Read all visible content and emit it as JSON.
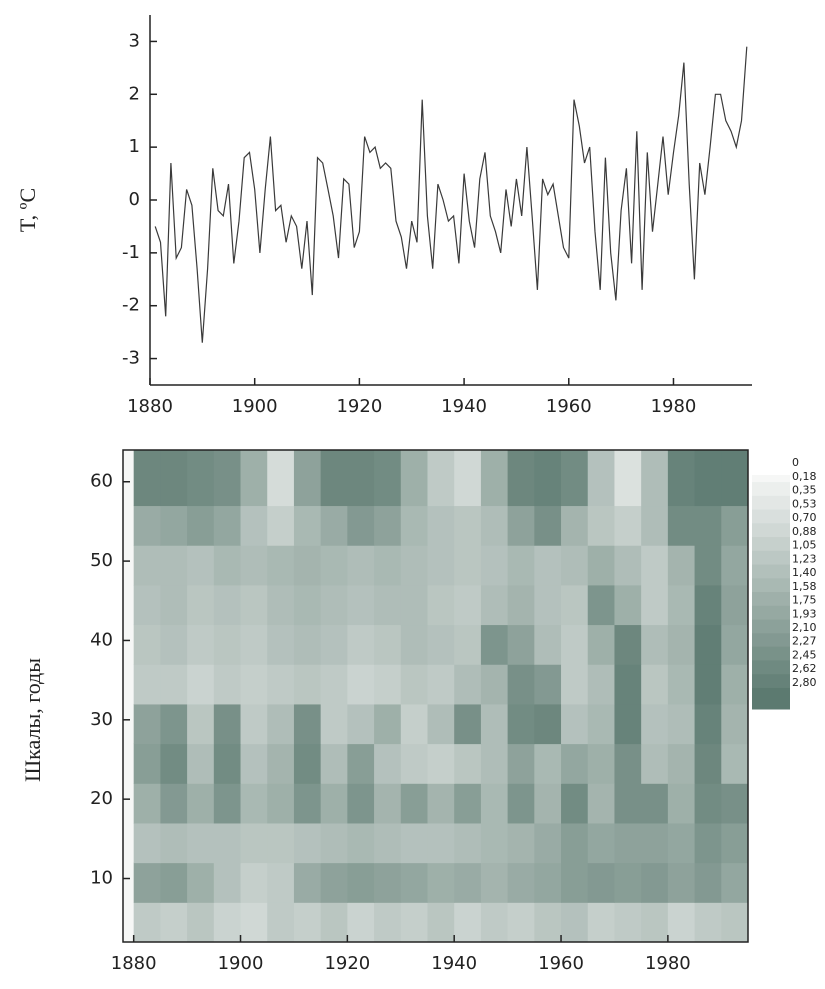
{
  "chart_data": [
    {
      "type": "line",
      "ylabel": "T, ºC",
      "color": "#3a3a3a",
      "x": [
        1881,
        1882,
        1883,
        1884,
        1885,
        1886,
        1887,
        1888,
        1889,
        1890,
        1891,
        1892,
        1893,
        1894,
        1895,
        1896,
        1897,
        1898,
        1899,
        1900,
        1901,
        1902,
        1903,
        1904,
        1905,
        1906,
        1907,
        1908,
        1909,
        1910,
        1911,
        1912,
        1913,
        1914,
        1915,
        1916,
        1917,
        1918,
        1919,
        1920,
        1921,
        1922,
        1923,
        1924,
        1925,
        1926,
        1927,
        1928,
        1929,
        1930,
        1931,
        1932,
        1933,
        1934,
        1935,
        1936,
        1937,
        1938,
        1939,
        1940,
        1941,
        1942,
        1943,
        1944,
        1945,
        1946,
        1947,
        1948,
        1949,
        1950,
        1951,
        1952,
        1953,
        1954,
        1955,
        1956,
        1957,
        1958,
        1959,
        1960,
        1961,
        1962,
        1963,
        1964,
        1965,
        1966,
        1967,
        1968,
        1969,
        1970,
        1971,
        1972,
        1973,
        1974,
        1975,
        1976,
        1977,
        1978,
        1979,
        1980,
        1981,
        1982,
        1983,
        1984,
        1985,
        1986,
        1987,
        1988,
        1989,
        1990,
        1991,
        1992,
        1993,
        1994
      ],
      "values": [
        -0.5,
        -0.8,
        -2.2,
        0.7,
        -1.1,
        -0.9,
        0.2,
        -0.1,
        -1.3,
        -2.7,
        -1.3,
        0.6,
        -0.2,
        -0.3,
        0.3,
        -1.2,
        -0.4,
        0.8,
        0.9,
        0.2,
        -1.0,
        0.2,
        1.2,
        -0.2,
        -0.1,
        -0.8,
        -0.3,
        -0.5,
        -1.3,
        -0.4,
        -1.8,
        0.8,
        0.7,
        0.2,
        -0.3,
        -1.1,
        0.4,
        0.3,
        -0.9,
        -0.6,
        1.2,
        0.9,
        1.0,
        0.6,
        0.7,
        0.6,
        -0.4,
        -0.7,
        -1.3,
        -0.4,
        -0.8,
        1.9,
        -0.3,
        -1.3,
        0.3,
        0.0,
        -0.4,
        -0.3,
        -1.2,
        0.5,
        -0.4,
        -0.9,
        0.4,
        0.9,
        -0.3,
        -0.6,
        -1.0,
        0.2,
        -0.5,
        0.4,
        -0.3,
        1.0,
        -0.3,
        -1.7,
        0.4,
        0.1,
        0.3,
        -0.3,
        -0.9,
        -1.1,
        1.9,
        1.4,
        0.7,
        1.0,
        -0.6,
        -1.7,
        0.8,
        -1.0,
        -1.9,
        -0.2,
        0.6,
        -1.2,
        1.3,
        -1.7,
        0.9,
        -0.6,
        0.3,
        1.2,
        0.1,
        0.9,
        1.6,
        2.6,
        0.3,
        -1.5,
        0.7,
        0.1,
        1.0,
        2.0,
        2.0,
        1.5,
        1.3,
        1.0,
        1.5,
        2.9
      ],
      "xlim": [
        1880,
        1995
      ],
      "ylim": [
        -3.5,
        3.5
      ],
      "xticks": [
        1880,
        1900,
        1920,
        1940,
        1960,
        1980
      ],
      "yticks": [
        -3,
        -2,
        -1,
        0,
        1,
        2,
        3
      ]
    },
    {
      "type": "heatmap",
      "ylabel": "Шкалы, годы",
      "x_bins": [
        1880,
        1885,
        1890,
        1895,
        1900,
        1905,
        1910,
        1915,
        1920,
        1925,
        1930,
        1935,
        1940,
        1945,
        1950,
        1955,
        1960,
        1965,
        1970,
        1975,
        1980,
        1985,
        1990,
        1995
      ],
      "y_bins": [
        2,
        7,
        12,
        17,
        22,
        27,
        32,
        37,
        42,
        47,
        52,
        57,
        64
      ],
      "z": [
        [
          1.0,
          0.9,
          1.1,
          0.8,
          0.7,
          1.0,
          0.9,
          1.1,
          0.8,
          1.0,
          0.9,
          1.1,
          0.8,
          1.0,
          0.9,
          1.1,
          1.2,
          0.9,
          1.0,
          1.1,
          0.8,
          1.0,
          1.1
        ],
        [
          1.9,
          2.0,
          1.6,
          1.2,
          0.9,
          1.0,
          1.7,
          1.9,
          2.0,
          1.9,
          1.8,
          1.6,
          1.7,
          1.5,
          1.7,
          1.8,
          2.0,
          2.1,
          2.0,
          2.1,
          1.9,
          2.1,
          1.8
        ],
        [
          1.2,
          1.3,
          1.2,
          1.2,
          1.1,
          1.1,
          1.2,
          1.3,
          1.4,
          1.3,
          1.2,
          1.2,
          1.3,
          1.4,
          1.5,
          1.7,
          2.0,
          1.8,
          1.9,
          1.9,
          1.8,
          2.2,
          2.0
        ],
        [
          1.6,
          2.1,
          1.6,
          2.2,
          1.4,
          1.6,
          2.2,
          1.6,
          2.2,
          1.5,
          2.0,
          1.5,
          2.0,
          1.4,
          2.2,
          1.5,
          2.4,
          1.5,
          2.3,
          2.3,
          1.6,
          2.4,
          2.3
        ],
        [
          2.0,
          2.4,
          1.3,
          2.4,
          1.2,
          1.5,
          2.4,
          1.3,
          2.0,
          1.2,
          1.0,
          0.9,
          1.1,
          1.3,
          1.9,
          1.4,
          1.8,
          1.6,
          2.3,
          1.3,
          1.5,
          2.5,
          1.4
        ],
        [
          1.9,
          2.2,
          1.1,
          2.3,
          1.0,
          1.3,
          2.3,
          1.0,
          1.2,
          1.6,
          0.9,
          1.3,
          2.3,
          1.3,
          2.4,
          2.5,
          1.2,
          1.4,
          2.6,
          1.2,
          1.3,
          2.6,
          1.5
        ],
        [
          1.0,
          1.0,
          0.8,
          1.0,
          0.9,
          1.0,
          1.1,
          1.0,
          0.8,
          0.9,
          1.1,
          1.0,
          1.3,
          1.5,
          2.3,
          2.1,
          1.0,
          1.3,
          2.6,
          1.1,
          1.4,
          2.7,
          1.6
        ],
        [
          1.1,
          1.2,
          1.0,
          1.1,
          1.0,
          1.2,
          1.3,
          1.2,
          1.0,
          1.1,
          1.3,
          1.2,
          1.1,
          2.2,
          1.9,
          1.3,
          1.0,
          1.6,
          2.5,
          1.3,
          1.5,
          2.7,
          1.8
        ],
        [
          1.2,
          1.3,
          1.1,
          1.2,
          1.1,
          1.3,
          1.4,
          1.3,
          1.2,
          1.3,
          1.3,
          1.1,
          1.0,
          1.3,
          1.5,
          1.2,
          1.1,
          2.2,
          1.6,
          1.0,
          1.4,
          2.6,
          1.9
        ],
        [
          1.3,
          1.3,
          1.2,
          1.4,
          1.3,
          1.4,
          1.5,
          1.4,
          1.3,
          1.4,
          1.3,
          1.2,
          1.1,
          1.2,
          1.4,
          1.2,
          1.3,
          1.6,
          1.3,
          1.0,
          1.5,
          2.4,
          1.8
        ],
        [
          1.7,
          1.8,
          2.0,
          1.8,
          1.2,
          0.9,
          1.4,
          1.7,
          2.1,
          1.9,
          1.4,
          1.2,
          1.1,
          1.3,
          1.9,
          2.3,
          1.5,
          1.1,
          0.9,
          1.3,
          2.4,
          2.4,
          2.0
        ],
        [
          2.5,
          2.5,
          2.4,
          2.3,
          1.6,
          0.6,
          1.9,
          2.5,
          2.5,
          2.4,
          1.6,
          1.0,
          0.7,
          1.6,
          2.5,
          2.6,
          2.4,
          1.2,
          0.5,
          1.3,
          2.6,
          2.7,
          2.7
        ]
      ],
      "xlim": [
        1878,
        1995
      ],
      "ylim": [
        2,
        64
      ],
      "xticks": [
        1880,
        1900,
        1920,
        1940,
        1960,
        1980
      ],
      "yticks": [
        10,
        20,
        30,
        40,
        50,
        60
      ],
      "clim": [
        0,
        2.8
      ],
      "colors": [
        "#f6f7f6",
        "#5c7a70"
      ],
      "colorbar_ticks": [
        0,
        {
          "value": 0.18,
          "label": "0,18"
        },
        {
          "value": 0.35,
          "label": "0,35"
        },
        {
          "value": 0.53,
          "label": "0,53"
        },
        {
          "value": 0.7,
          "label": "0,70"
        },
        {
          "value": 0.88,
          "label": "0,88"
        },
        {
          "value": 1.05,
          "label": "1,05"
        },
        {
          "value": 1.23,
          "label": "1,23"
        },
        {
          "value": 1.4,
          "label": "1,40"
        },
        {
          "value": 1.58,
          "label": "1,58"
        },
        {
          "value": 1.75,
          "label": "1,75"
        },
        {
          "value": 1.93,
          "label": "1,93"
        },
        {
          "value": 2.1,
          "label": "2,10"
        },
        {
          "value": 2.27,
          "label": "2,27"
        },
        {
          "value": 2.45,
          "label": "2,45"
        },
        {
          "value": 2.62,
          "label": "2,62"
        },
        {
          "value": 2.8,
          "label": "2,80"
        }
      ]
    }
  ]
}
